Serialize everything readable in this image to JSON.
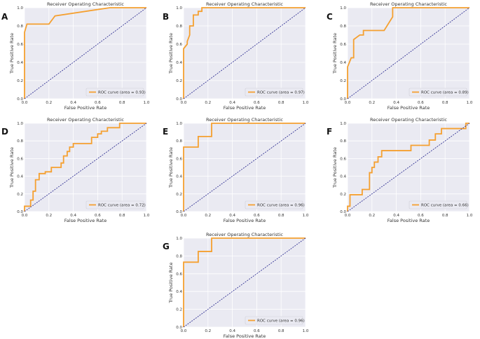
{
  "colors": {
    "roc": "#f5a030",
    "diagonal": "#1f1f8a",
    "panel_bg": "#eaeaf2"
  },
  "chart_data": [
    {
      "panel": "A",
      "type": "line",
      "title": "Receiver Operating Characteristic",
      "xlabel": "False Positive Rate",
      "ylabel": "True Positive Rate",
      "xlim": [
        0,
        1
      ],
      "ylim": [
        0,
        1
      ],
      "xticks": [
        "0.0",
        "0.2",
        "0.4",
        "0.6",
        "0.8",
        "1.0"
      ],
      "yticks": [
        "0.0",
        "0.2",
        "0.4",
        "0.6",
        "0.8",
        "1.0"
      ],
      "legend": "ROC curve (area = 0.93)",
      "legend_position": "lower-right",
      "series": [
        {
          "name": "ROC curve",
          "x": [
            0,
            0,
            0.02,
            0.05,
            0.2,
            0.25,
            0.7,
            1.0
          ],
          "y": [
            0,
            0.73,
            0.82,
            0.82,
            0.82,
            0.91,
            1.0,
            1.0
          ]
        },
        {
          "name": "chance",
          "x": [
            0,
            1
          ],
          "y": [
            0,
            1
          ]
        }
      ]
    },
    {
      "panel": "B",
      "type": "line",
      "title": "Receiver Operating Characteristic",
      "xlabel": "False Positive Rate",
      "ylabel": "True Positive Rate",
      "xlim": [
        0,
        1
      ],
      "ylim": [
        0,
        1
      ],
      "xticks": [
        "0.0",
        "0.2",
        "0.4",
        "0.6",
        "0.8",
        "1.0"
      ],
      "yticks": [
        "0.0",
        "0.2",
        "0.4",
        "0.6",
        "0.8",
        "1.0"
      ],
      "legend": "ROC curve (area = 0.97)",
      "legend_position": "lower-right",
      "series": [
        {
          "name": "ROC curve",
          "x": [
            0,
            0,
            0.03,
            0.03,
            0.05,
            0.05,
            0.08,
            0.08,
            0.12,
            0.12,
            0.15,
            0.15,
            1.0
          ],
          "y": [
            0,
            0.55,
            0.6,
            0.63,
            0.7,
            0.8,
            0.8,
            0.92,
            0.92,
            0.96,
            0.96,
            1.0,
            1.0
          ]
        },
        {
          "name": "chance",
          "x": [
            0,
            1
          ],
          "y": [
            0,
            1
          ]
        }
      ]
    },
    {
      "panel": "C",
      "type": "line",
      "title": "Receiver Operating Characteristic",
      "xlabel": "False Positive Rate",
      "ylabel": "True Positive Rate",
      "xlim": [
        0,
        1
      ],
      "ylim": [
        0,
        1
      ],
      "xticks": [
        "0.0",
        "0.2",
        "0.4",
        "0.6",
        "0.8",
        "1.0"
      ],
      "yticks": [
        "0.0",
        "0.2",
        "0.4",
        "0.6",
        "0.8",
        "1.0"
      ],
      "legend": "ROC curve (area = 0.89)",
      "legend_position": "lower-right",
      "series": [
        {
          "name": "ROC curve",
          "x": [
            0,
            0,
            0.03,
            0.05,
            0.05,
            0.1,
            0.13,
            0.13,
            0.3,
            0.37,
            0.37,
            1.0
          ],
          "y": [
            0,
            0.35,
            0.45,
            0.45,
            0.65,
            0.7,
            0.7,
            0.75,
            0.75,
            0.9,
            1.0,
            1.0
          ]
        },
        {
          "name": "chance",
          "x": [
            0,
            1
          ],
          "y": [
            0,
            1
          ]
        }
      ]
    },
    {
      "panel": "D",
      "type": "line",
      "title": "Receiver Operating Characteristic",
      "xlabel": "False Positive Rate",
      "ylabel": "True Positive Rate",
      "xlim": [
        0,
        1
      ],
      "ylim": [
        0,
        1
      ],
      "xticks": [
        "0.0",
        "0.2",
        "0.4",
        "0.6",
        "0.8",
        "1.0"
      ],
      "yticks": [
        "0.0",
        "0.2",
        "0.4",
        "0.6",
        "0.8",
        "1.0"
      ],
      "legend": "ROC curve (area = 0.72)",
      "legend_position": "lower-right",
      "series": [
        {
          "name": "ROC curve",
          "x": [
            0,
            0,
            0.05,
            0.05,
            0.07,
            0.07,
            0.09,
            0.09,
            0.12,
            0.12,
            0.17,
            0.17,
            0.22,
            0.22,
            0.3,
            0.3,
            0.32,
            0.32,
            0.35,
            0.35,
            0.37,
            0.37,
            0.4,
            0.4,
            0.55,
            0.55,
            0.6,
            0.6,
            0.63,
            0.63,
            0.68,
            0.68,
            0.73,
            0.73,
            0.78,
            0.78,
            1.0
          ],
          "y": [
            0,
            0.06,
            0.06,
            0.13,
            0.13,
            0.23,
            0.23,
            0.36,
            0.36,
            0.43,
            0.43,
            0.45,
            0.45,
            0.5,
            0.5,
            0.55,
            0.55,
            0.63,
            0.63,
            0.68,
            0.68,
            0.73,
            0.73,
            0.77,
            0.77,
            0.84,
            0.84,
            0.88,
            0.88,
            0.91,
            0.91,
            0.95,
            0.95,
            0.95,
            0.95,
            1.0,
            1.0
          ]
        },
        {
          "name": "chance",
          "x": [
            0,
            1
          ],
          "y": [
            0,
            1
          ]
        }
      ]
    },
    {
      "panel": "E",
      "type": "line",
      "title": "Receiver Operating Characteristic",
      "xlabel": "False Positive Rate",
      "ylabel": "True Positive Rate",
      "xlim": [
        0,
        1
      ],
      "ylim": [
        0,
        1
      ],
      "xticks": [
        "0.0",
        "0.2",
        "0.4",
        "0.6",
        "0.8",
        "1.0"
      ],
      "yticks": [
        "0.0",
        "0.2",
        "0.4",
        "0.6",
        "0.8",
        "1.0"
      ],
      "legend": "ROC curve (area = 0.96)",
      "legend_position": "lower-right",
      "series": [
        {
          "name": "ROC curve",
          "x": [
            0,
            0,
            0.12,
            0.12,
            0.23,
            0.23,
            1.0
          ],
          "y": [
            0,
            0.73,
            0.73,
            0.85,
            0.85,
            1.0,
            1.0
          ]
        },
        {
          "name": "chance",
          "x": [
            0,
            1
          ],
          "y": [
            0,
            1
          ]
        }
      ]
    },
    {
      "panel": "F",
      "type": "line",
      "title": "Receiver Operating Characteristic",
      "xlabel": "False Positive Rate",
      "ylabel": "True Positive Rate",
      "xlim": [
        0,
        1
      ],
      "ylim": [
        0,
        1
      ],
      "xticks": [
        "0.0",
        "0.2",
        "0.4",
        "0.6",
        "0.8",
        "1.0"
      ],
      "yticks": [
        "0.0",
        "0.2",
        "0.4",
        "0.6",
        "0.8",
        "1.0"
      ],
      "legend": "ROC curve (area = 0.66)",
      "legend_position": "lower-right",
      "series": [
        {
          "name": "ROC curve",
          "x": [
            0,
            0,
            0.02,
            0.02,
            0.12,
            0.12,
            0.18,
            0.18,
            0.2,
            0.2,
            0.22,
            0.22,
            0.25,
            0.25,
            0.28,
            0.28,
            0.52,
            0.52,
            0.67,
            0.67,
            0.72,
            0.72,
            0.77,
            0.77,
            0.97,
            0.97,
            1.0
          ],
          "y": [
            0,
            0.06,
            0.06,
            0.19,
            0.19,
            0.25,
            0.25,
            0.44,
            0.44,
            0.5,
            0.5,
            0.56,
            0.56,
            0.62,
            0.62,
            0.69,
            0.69,
            0.75,
            0.75,
            0.81,
            0.81,
            0.88,
            0.88,
            0.94,
            0.94,
            1.0,
            1.0
          ]
        },
        {
          "name": "chance",
          "x": [
            0,
            1
          ],
          "y": [
            0,
            1
          ]
        }
      ]
    },
    {
      "panel": "G",
      "type": "line",
      "title": "Receiver Operating Characteristic",
      "xlabel": "False Positive Rate",
      "ylabel": "True Positive Rate",
      "xlim": [
        0,
        1
      ],
      "ylim": [
        0,
        1
      ],
      "xticks": [
        "0.0",
        "0.2",
        "0.4",
        "0.6",
        "0.8",
        "1.0"
      ],
      "yticks": [
        "0.0",
        "0.2",
        "0.4",
        "0.6",
        "0.8",
        "1.0"
      ],
      "legend": "ROC curve (area = 0.96)",
      "legend_position": "lower-right",
      "series": [
        {
          "name": "ROC curve",
          "x": [
            0,
            0,
            0.12,
            0.12,
            0.23,
            0.23,
            1.0
          ],
          "y": [
            0,
            0.73,
            0.73,
            0.85,
            0.85,
            1.0,
            1.0
          ]
        },
        {
          "name": "chance",
          "x": [
            0,
            1
          ],
          "y": [
            0,
            1
          ]
        }
      ]
    }
  ]
}
